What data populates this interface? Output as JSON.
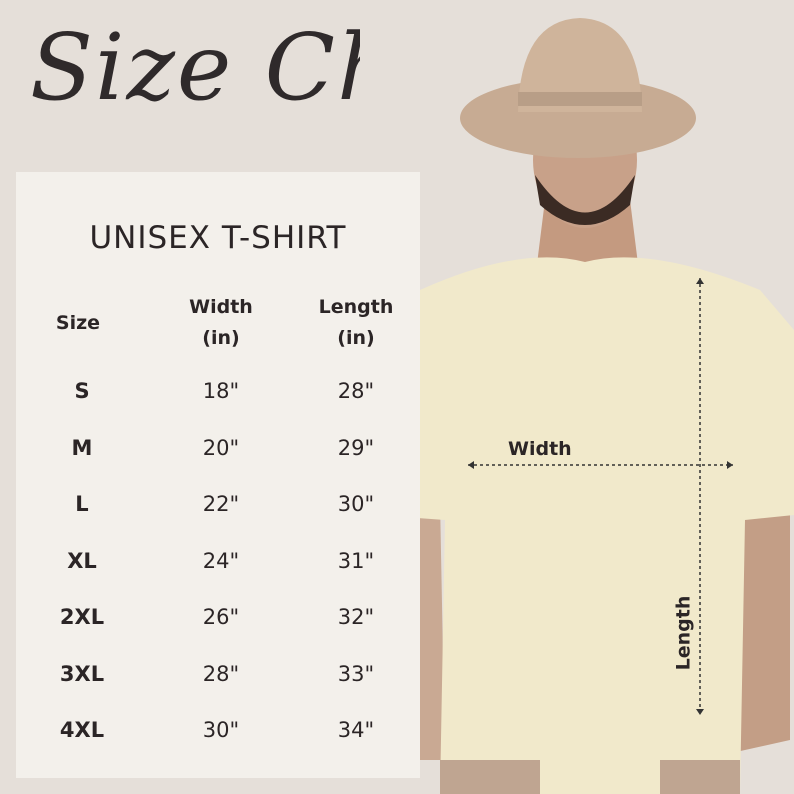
{
  "title": "Size Chart",
  "subtitle": "UNISEX T-SHIRT",
  "headers": [
    "Size",
    "Width\n(in)",
    "Length\n(in)"
  ],
  "header_lines": {
    "size": "Size",
    "width": [
      "Width",
      "(in)"
    ],
    "length": [
      "Length",
      "(in)"
    ]
  },
  "rows": [
    {
      "size": "S",
      "width": "18\"",
      "length": "28\""
    },
    {
      "size": "M",
      "width": "20\"",
      "length": "29\""
    },
    {
      "size": "L",
      "width": "22\"",
      "length": "30\""
    },
    {
      "size": "XL",
      "width": "24\"",
      "length": "31\""
    },
    {
      "size": "2XL",
      "width": "26\"",
      "length": "32\""
    },
    {
      "size": "3XL",
      "width": "28\"",
      "length": "33\""
    },
    {
      "size": "4XL",
      "width": "30\"",
      "length": "34\""
    }
  ],
  "diagram": {
    "width_label": "Width",
    "length_label": "Length"
  },
  "colors": {
    "background": "#e5dfd9",
    "panel": "#f3f0eb",
    "shirt": "#f1e9cb",
    "hat": "#cfb49b",
    "text": "#2b2526"
  }
}
